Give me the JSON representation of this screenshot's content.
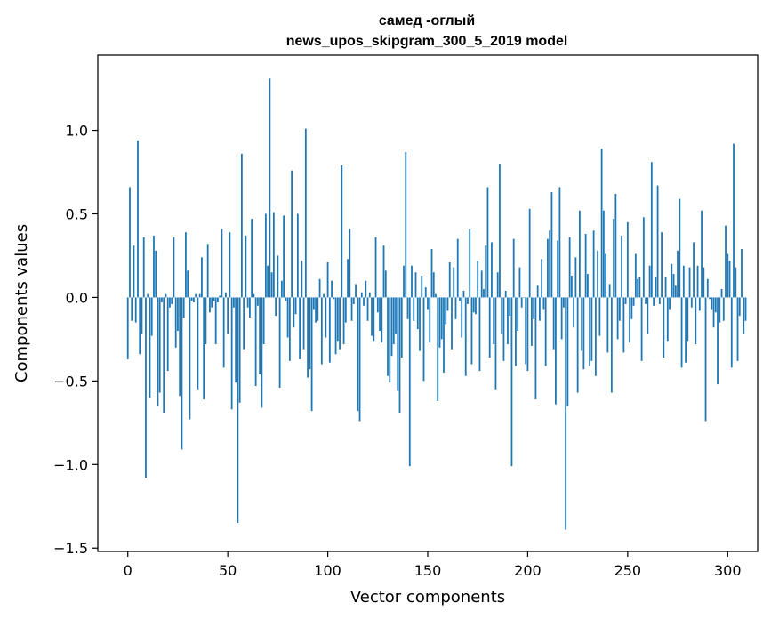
{
  "chart_data": {
    "type": "bar",
    "title_line1": "самед -оглый",
    "title_line2": "news_upos_skipgram_300_5_2019 model",
    "xlabel": "Vector components",
    "ylabel": "Components values",
    "xlim": [
      -15,
      315
    ],
    "ylim": [
      -1.52,
      1.45
    ],
    "xticks": [
      {
        "value": 0,
        "label": "0"
      },
      {
        "value": 50,
        "label": "50"
      },
      {
        "value": 100,
        "label": "100"
      },
      {
        "value": 150,
        "label": "150"
      },
      {
        "value": 200,
        "label": "200"
      },
      {
        "value": 250,
        "label": "250"
      },
      {
        "value": 300,
        "label": "300"
      }
    ],
    "yticks": [
      {
        "value": 1.0,
        "label": "1.0"
      },
      {
        "value": 0.5,
        "label": "0.5"
      },
      {
        "value": 0.0,
        "label": "0.0"
      },
      {
        "value": -0.5,
        "label": "−0.5"
      },
      {
        "value": -1.0,
        "label": "−1.0"
      },
      {
        "value": -1.5,
        "label": "−1.5"
      }
    ],
    "bar_color": "#1f77b4",
    "grid": false,
    "values": [
      -0.37,
      0.66,
      -0.14,
      0.31,
      -0.15,
      0.94,
      -0.34,
      -0.22,
      0.36,
      -1.08,
      0.02,
      -0.6,
      -0.23,
      0.37,
      0.28,
      -0.65,
      -0.57,
      -0.03,
      -0.69,
      0.02,
      -0.44,
      -0.06,
      -0.04,
      0.36,
      -0.3,
      -0.2,
      -0.59,
      -0.91,
      -0.12,
      0.39,
      0.16,
      -0.73,
      -0.02,
      -0.03,
      0.02,
      -0.55,
      0.02,
      0.24,
      -0.61,
      -0.28,
      0.32,
      -0.09,
      -0.06,
      -0.02,
      -0.28,
      -0.03,
      0.01,
      0.41,
      -0.42,
      0.03,
      -0.22,
      0.39,
      -0.67,
      -0.06,
      -0.51,
      -1.35,
      -0.63,
      0.86,
      -0.31,
      0.37,
      -0.06,
      -0.12,
      0.47,
      0.02,
      -0.53,
      -0.05,
      -0.46,
      -0.66,
      -0.28,
      0.5,
      0.19,
      1.31,
      0.15,
      0.51,
      -0.11,
      0.25,
      -0.54,
      0.1,
      0.49,
      -0.02,
      -0.24,
      -0.38,
      0.76,
      -0.18,
      -0.1,
      0.5,
      -0.37,
      0.22,
      -0.31,
      1.01,
      -0.48,
      -0.43,
      -0.68,
      -0.07,
      -0.15,
      -0.14,
      0.11,
      -0.4,
      0.02,
      -0.24,
      0.21,
      -0.39,
      0.1,
      -0.01,
      -0.34,
      -0.26,
      -0.31,
      0.79,
      -0.28,
      -0.15,
      0.23,
      0.41,
      -0.14,
      -0.04,
      0.08,
      -0.68,
      -0.74,
      0.03,
      -0.05,
      0.1,
      -0.14,
      0.03,
      -0.23,
      -0.26,
      0.36,
      -0.09,
      -0.2,
      -0.27,
      0.31,
      0.16,
      -0.47,
      -0.51,
      -0.35,
      -0.28,
      -0.22,
      -0.56,
      -0.69,
      -0.36,
      0.19,
      0.87,
      -0.13,
      -1.01,
      0.19,
      -0.14,
      0.15,
      -0.19,
      -0.32,
      0.13,
      -0.5,
      0.06,
      -0.07,
      -0.27,
      0.29,
      0.15,
      0.02,
      -0.62,
      -0.3,
      -0.25,
      -0.45,
      -0.16,
      -0.08,
      0.21,
      -0.31,
      0.18,
      -0.13,
      0.35,
      -0.02,
      -0.24,
      0.04,
      -0.47,
      -0.04,
      0.41,
      -0.4,
      -0.09,
      -0.1,
      0.22,
      -0.44,
      0.16,
      0.05,
      0.31,
      0.66,
      -0.36,
      0.33,
      -0.28,
      -0.55,
      0.15,
      0.8,
      -0.22,
      -0.38,
      0.04,
      -0.28,
      -0.11,
      -1.01,
      0.35,
      -0.41,
      -0.2,
      0.18,
      -0.06,
      0.0,
      -0.4,
      -0.44,
      0.53,
      -0.29,
      -0.13,
      -0.61,
      0.07,
      -0.14,
      0.23,
      -0.07,
      -0.41,
      0.35,
      0.4,
      0.63,
      -0.31,
      -0.64,
      0.34,
      0.66,
      -0.25,
      -0.06,
      -1.39,
      -0.65,
      0.36,
      0.13,
      -0.18,
      0.24,
      -0.57,
      0.52,
      -0.32,
      -0.43,
      0.38,
      0.14,
      -0.41,
      -0.38,
      0.4,
      -0.47,
      0.28,
      -0.23,
      0.89,
      0.52,
      0.26,
      -0.33,
      0.08,
      -0.57,
      0.47,
      0.62,
      -0.25,
      -0.14,
      0.37,
      -0.33,
      -0.04,
      0.45,
      -0.27,
      -0.13,
      -0.05,
      0.26,
      0.11,
      0.12,
      -0.38,
      0.48,
      -0.04,
      -0.22,
      0.19,
      0.81,
      -0.05,
      0.12,
      0.67,
      -0.04,
      0.39,
      -0.36,
      0.12,
      -0.26,
      -0.07,
      0.2,
      0.14,
      0.07,
      0.28,
      0.59,
      -0.42,
      0.19,
      -0.39,
      -0.26,
      0.18,
      -0.06,
      0.33,
      -0.28,
      0.19,
      -0.08,
      0.52,
      0.18,
      -0.74,
      0.11,
      -0.01,
      -0.07,
      -0.18,
      -0.09,
      -0.52,
      -0.15,
      0.05,
      -0.14,
      0.43,
      0.26,
      0.22,
      -0.42,
      0.92,
      0.18,
      -0.38,
      -0.11,
      0.29,
      -0.22,
      -0.14
    ]
  }
}
